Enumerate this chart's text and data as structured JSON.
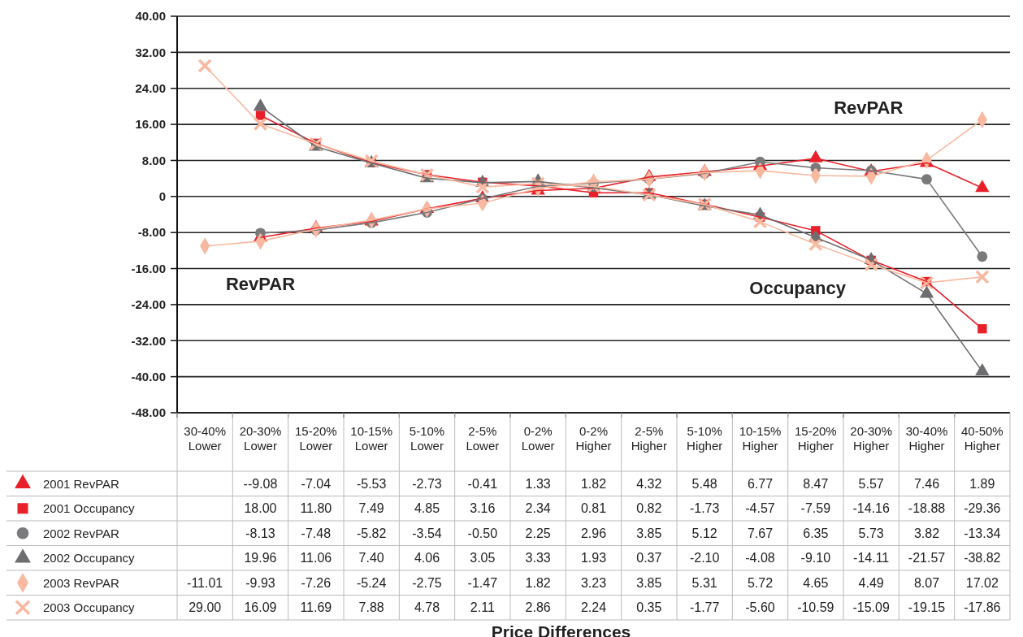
{
  "chart_data": {
    "type": "line",
    "categories": [
      "30-40% Lower",
      "20-30% Lower",
      "15-20% Lower",
      "10-15% Lower",
      "5-10% Lower",
      "2-5% Lower",
      "0-2% Lower",
      "0-2% Higher",
      "2-5% Higher",
      "5-10% Higher",
      "10-15% Higher",
      "15-20% Higher",
      "20-30% Higher",
      "30-40% Higher",
      "40-50% Higher"
    ],
    "ylim": [
      -48,
      40
    ],
    "yticks": [
      {
        "value": -48,
        "label": "-48.00"
      },
      {
        "value": -40,
        "label": "-40.00"
      },
      {
        "value": -32,
        "label": "-32.00"
      },
      {
        "value": -24,
        "label": "-24.00"
      },
      {
        "value": -16,
        "label": "-16.00"
      },
      {
        "value": -8,
        "label": "-8.00"
      },
      0,
      {
        "value": 8,
        "label": "8.00"
      },
      {
        "value": 16,
        "label": "16.00"
      },
      {
        "value": 24,
        "label": "24.00"
      },
      {
        "value": 32,
        "label": "32.00"
      },
      {
        "value": 40,
        "label": "40.00"
      }
    ],
    "grid": "y",
    "legend": "bottom left",
    "series": [
      {
        "name": "2001 RevPAR",
        "color": "#e8202a",
        "marker": "triangle",
        "values": [
          null,
          -9.08,
          -7.04,
          -5.53,
          -2.73,
          -0.41,
          1.33,
          1.82,
          4.32,
          5.48,
          6.77,
          8.47,
          5.57,
          7.46,
          1.89
        ],
        "value_labels": [
          null,
          "--9.08",
          "-7.04",
          "-5.53",
          "-2.73",
          "-0.41",
          "1.33",
          "1.82",
          "4.32",
          "5.48",
          "6.77",
          "8.47",
          "5.57",
          "7.46",
          "1.89"
        ]
      },
      {
        "name": "2001 Occupancy",
        "color": "#e8202a",
        "marker": "square",
        "values": [
          null,
          18.0,
          11.8,
          7.49,
          4.85,
          3.16,
          2.34,
          0.81,
          0.82,
          -1.73,
          -4.57,
          -7.59,
          -14.16,
          -18.88,
          -29.36
        ],
        "value_labels": [
          null,
          "18.00",
          "11.80",
          "7.49",
          "4.85",
          "3.16",
          "2.34",
          "0.81",
          "0.82",
          "-1.73",
          "-4.57",
          "-7.59",
          "-14.16",
          "-18.88",
          "-29.36"
        ]
      },
      {
        "name": "2002 RevPAR",
        "color": "#7a7a7c",
        "marker": "circle",
        "values": [
          null,
          -8.13,
          -7.48,
          -5.82,
          -3.54,
          -0.5,
          2.25,
          2.96,
          3.85,
          5.12,
          7.67,
          6.35,
          5.73,
          3.82,
          -13.34
        ],
        "value_labels": [
          null,
          "-8.13",
          "-7.48",
          "-5.82",
          "-3.54",
          "-0.50",
          "2.25",
          "2.96",
          "3.85",
          "5.12",
          "7.67",
          "6.35",
          "5.73",
          "3.82",
          "-13.34"
        ]
      },
      {
        "name": "2002 Occupancy",
        "color": "#6e6e70",
        "marker": "triangle",
        "values": [
          null,
          19.96,
          11.06,
          7.4,
          4.06,
          3.05,
          3.33,
          1.93,
          0.37,
          -2.1,
          -4.08,
          -9.1,
          -14.11,
          -21.57,
          -38.82
        ],
        "value_labels": [
          null,
          "19.96",
          "11.06",
          "7.40",
          "4.06",
          "3.05",
          "3.33",
          "1.93",
          "0.37",
          "-2.10",
          "-4.08",
          "-9.10",
          "-14.11",
          "-21.57",
          "-38.82"
        ]
      },
      {
        "name": "2003 RevPAR",
        "color": "#f8b9a0",
        "marker": "diamond",
        "values": [
          -11.01,
          -9.93,
          -7.26,
          -5.24,
          -2.75,
          -1.47,
          1.82,
          3.23,
          3.85,
          5.31,
          5.72,
          4.65,
          4.49,
          8.07,
          17.02
        ],
        "value_labels": [
          "-11.01",
          "-9.93",
          "-7.26",
          "-5.24",
          "-2.75",
          "-1.47",
          "1.82",
          "3.23",
          "3.85",
          "5.31",
          "5.72",
          "4.65",
          "4.49",
          "8.07",
          "17.02"
        ]
      },
      {
        "name": "2003 Occupancy",
        "color": "#f8b9a0",
        "marker": "cross",
        "values": [
          29.0,
          16.09,
          11.69,
          7.88,
          4.78,
          2.11,
          2.86,
          2.24,
          0.35,
          -1.77,
          -5.6,
          -10.59,
          -15.09,
          -19.15,
          -17.86
        ],
        "value_labels": [
          "29.00",
          "16.09",
          "11.69",
          "7.88",
          "4.78",
          "2.11",
          "2.86",
          "2.24",
          "0.35",
          "-1.77",
          "-5.60",
          "-10.59",
          "-15.09",
          "-19.15",
          "-17.86"
        ]
      }
    ],
    "annotations": [
      "RevPAR",
      "RevPAR",
      "Occupancy",
      "Price Differences"
    ]
  }
}
